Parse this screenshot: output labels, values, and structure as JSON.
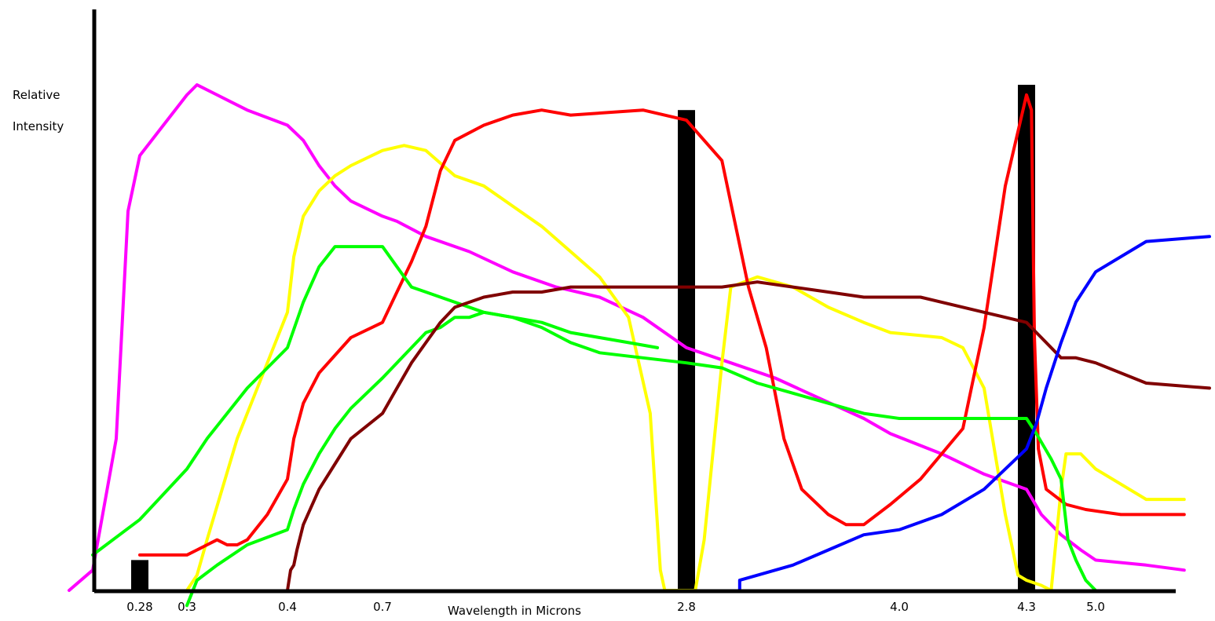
{
  "chart_data": {
    "type": "line",
    "title": "",
    "xlabel": "Wavelength in Microns",
    "ylabel": "Relative Intensity",
    "ylabel_lines": [
      "Relative",
      "Intensity"
    ],
    "ylim": [
      0,
      100
    ],
    "grid": false,
    "legend": "none",
    "x_ticks": [
      {
        "label": "0.28",
        "value": 0.28
      },
      {
        "label": "0.3",
        "value": 0.3
      },
      {
        "label": "0.4",
        "value": 0.4
      },
      {
        "label": "0.7",
        "value": 0.7
      },
      {
        "label": "2.8",
        "value": 2.8
      },
      {
        "label": "4.0",
        "value": 4.0
      },
      {
        "label": "4.3",
        "value": 4.3
      },
      {
        "label": "5.0",
        "value": 5.0
      }
    ],
    "x_mapping": [
      [
        0.28,
        178
      ],
      [
        0.3,
        238
      ],
      [
        0.4,
        366
      ],
      [
        0.7,
        487
      ],
      [
        2.8,
        874
      ],
      [
        4.0,
        1145
      ],
      [
        4.3,
        1307
      ],
      [
        5.0,
        1395
      ],
      [
        5.45,
        1540
      ]
    ],
    "bands": [
      {
        "x": 0.28,
        "height": 6,
        "color": "#000000"
      },
      {
        "x": 2.8,
        "height": 95,
        "color": "#000000"
      },
      {
        "x": 4.3,
        "height": 100,
        "color": "#000000"
      }
    ],
    "series": [
      {
        "color": "#ff00ff",
        "points": [
          [
            0.25,
            0
          ],
          [
            0.26,
            4
          ],
          [
            0.27,
            30
          ],
          [
            0.275,
            75
          ],
          [
            0.28,
            86
          ],
          [
            0.29,
            92
          ],
          [
            0.3,
            98
          ],
          [
            0.31,
            100
          ],
          [
            0.33,
            98
          ],
          [
            0.36,
            95
          ],
          [
            0.4,
            92
          ],
          [
            0.45,
            89
          ],
          [
            0.5,
            84
          ],
          [
            0.55,
            80
          ],
          [
            0.6,
            77
          ],
          [
            0.7,
            74
          ],
          [
            0.8,
            73
          ],
          [
            1.0,
            70
          ],
          [
            1.3,
            67
          ],
          [
            1.6,
            63
          ],
          [
            1.9,
            60
          ],
          [
            2.2,
            58
          ],
          [
            2.5,
            54
          ],
          [
            2.8,
            48
          ],
          [
            3.05,
            45
          ],
          [
            3.3,
            42
          ],
          [
            3.55,
            38
          ],
          [
            3.8,
            34
          ],
          [
            3.95,
            31
          ],
          [
            4.1,
            27
          ],
          [
            4.2,
            23
          ],
          [
            4.3,
            20
          ],
          [
            4.45,
            15
          ],
          [
            4.65,
            11
          ],
          [
            4.85,
            8
          ],
          [
            5.0,
            6
          ],
          [
            5.2,
            5
          ],
          [
            5.35,
            4
          ]
        ]
      },
      {
        "color": "#ffff00",
        "points": [
          [
            0.3,
            0
          ],
          [
            0.31,
            3
          ],
          [
            0.32,
            10
          ],
          [
            0.35,
            30
          ],
          [
            0.38,
            45
          ],
          [
            0.4,
            55
          ],
          [
            0.42,
            66
          ],
          [
            0.45,
            74
          ],
          [
            0.5,
            79
          ],
          [
            0.55,
            82
          ],
          [
            0.6,
            84
          ],
          [
            0.7,
            87
          ],
          [
            0.85,
            88
          ],
          [
            1.0,
            87
          ],
          [
            1.2,
            82
          ],
          [
            1.4,
            80
          ],
          [
            1.6,
            76
          ],
          [
            1.8,
            72
          ],
          [
            2.0,
            67
          ],
          [
            2.2,
            62
          ],
          [
            2.4,
            54
          ],
          [
            2.55,
            35
          ],
          [
            2.62,
            4
          ],
          [
            2.65,
            0
          ],
          [
            2.72,
            0
          ],
          [
            2.85,
            0
          ],
          [
            2.9,
            10
          ],
          [
            3.0,
            45
          ],
          [
            3.05,
            60
          ],
          [
            3.2,
            62
          ],
          [
            3.4,
            60
          ],
          [
            3.6,
            56
          ],
          [
            3.8,
            53
          ],
          [
            3.95,
            51
          ],
          [
            4.1,
            50
          ],
          [
            4.15,
            48
          ],
          [
            4.2,
            40
          ],
          [
            4.25,
            15
          ],
          [
            4.28,
            3
          ],
          [
            4.3,
            2
          ],
          [
            4.45,
            1
          ],
          [
            4.55,
            0
          ],
          [
            4.65,
            20
          ],
          [
            4.7,
            27
          ],
          [
            4.85,
            27
          ],
          [
            5.0,
            24
          ],
          [
            5.2,
            18
          ],
          [
            5.35,
            18
          ]
        ]
      },
      {
        "color": "#ff0000",
        "points": [
          [
            0.28,
            7
          ],
          [
            0.3,
            7
          ],
          [
            0.31,
            8
          ],
          [
            0.32,
            9
          ],
          [
            0.33,
            10
          ],
          [
            0.34,
            9
          ],
          [
            0.35,
            9
          ],
          [
            0.36,
            10
          ],
          [
            0.38,
            15
          ],
          [
            0.4,
            22
          ],
          [
            0.42,
            30
          ],
          [
            0.45,
            37
          ],
          [
            0.5,
            43
          ],
          [
            0.6,
            50
          ],
          [
            0.7,
            53
          ],
          [
            0.8,
            59
          ],
          [
            0.9,
            65
          ],
          [
            1.0,
            72
          ],
          [
            1.1,
            83
          ],
          [
            1.2,
            89
          ],
          [
            1.4,
            92
          ],
          [
            1.6,
            94
          ],
          [
            1.8,
            95
          ],
          [
            2.0,
            94
          ],
          [
            2.5,
            95
          ],
          [
            2.8,
            93
          ],
          [
            3.0,
            85
          ],
          [
            3.15,
            60
          ],
          [
            3.25,
            48
          ],
          [
            3.35,
            30
          ],
          [
            3.45,
            20
          ],
          [
            3.6,
            15
          ],
          [
            3.7,
            13
          ],
          [
            3.8,
            13
          ],
          [
            3.95,
            17
          ],
          [
            4.05,
            22
          ],
          [
            4.15,
            32
          ],
          [
            4.2,
            52
          ],
          [
            4.25,
            80
          ],
          [
            4.3,
            98
          ],
          [
            4.35,
            95
          ],
          [
            4.38,
            50
          ],
          [
            4.42,
            28
          ],
          [
            4.5,
            20
          ],
          [
            4.7,
            17
          ],
          [
            4.9,
            16
          ],
          [
            5.1,
            15
          ],
          [
            5.35,
            15
          ]
        ]
      },
      {
        "color": "#00ff00",
        "points": [
          [
            0.26,
            7
          ],
          [
            0.28,
            14
          ],
          [
            0.3,
            24
          ],
          [
            0.32,
            30
          ],
          [
            0.36,
            40
          ],
          [
            0.4,
            48
          ],
          [
            0.45,
            57
          ],
          [
            0.5,
            64
          ],
          [
            0.55,
            68
          ],
          [
            0.6,
            68
          ],
          [
            0.7,
            68
          ],
          [
            0.8,
            64
          ],
          [
            0.9,
            60
          ],
          [
            1.0,
            59
          ],
          [
            1.2,
            57
          ],
          [
            1.4,
            55
          ],
          [
            1.6,
            54
          ],
          [
            1.8,
            52
          ],
          [
            2.0,
            49
          ],
          [
            2.2,
            47
          ],
          [
            2.5,
            46
          ],
          [
            2.8,
            45
          ],
          [
            3.0,
            44
          ],
          [
            3.2,
            41
          ],
          [
            3.4,
            39
          ],
          [
            3.6,
            37
          ],
          [
            3.8,
            35
          ],
          [
            4.0,
            34
          ],
          [
            4.2,
            34
          ],
          [
            4.3,
            34
          ],
          [
            4.4,
            31
          ],
          [
            4.55,
            26
          ],
          [
            4.65,
            22
          ],
          [
            4.72,
            10
          ],
          [
            4.8,
            6
          ],
          [
            4.9,
            2
          ],
          [
            5.0,
            0
          ]
        ]
      },
      {
        "color": "#00ff00",
        "points": [
          [
            0.3,
            -3
          ],
          [
            0.31,
            2
          ],
          [
            0.33,
            5
          ],
          [
            0.36,
            9
          ],
          [
            0.4,
            12
          ],
          [
            0.42,
            16
          ],
          [
            0.45,
            21
          ],
          [
            0.5,
            27
          ],
          [
            0.55,
            32
          ],
          [
            0.6,
            36
          ],
          [
            0.7,
            42
          ],
          [
            0.8,
            45
          ],
          [
            0.9,
            48
          ],
          [
            1.0,
            51
          ],
          [
            1.1,
            52
          ],
          [
            1.2,
            54
          ],
          [
            1.3,
            54
          ],
          [
            1.4,
            55
          ],
          [
            1.6,
            54
          ],
          [
            1.8,
            53
          ],
          [
            2.0,
            51
          ],
          [
            2.2,
            50
          ],
          [
            2.4,
            49
          ],
          [
            2.6,
            48
          ]
        ]
      },
      {
        "color": "#800000",
        "points": [
          [
            0.4,
            0
          ],
          [
            0.41,
            4
          ],
          [
            0.42,
            5
          ],
          [
            0.43,
            8
          ],
          [
            0.45,
            13
          ],
          [
            0.5,
            20
          ],
          [
            0.55,
            25
          ],
          [
            0.6,
            30
          ],
          [
            0.7,
            35
          ],
          [
            0.8,
            40
          ],
          [
            0.9,
            45
          ],
          [
            1.0,
            49
          ],
          [
            1.1,
            53
          ],
          [
            1.2,
            56
          ],
          [
            1.4,
            58
          ],
          [
            1.6,
            59
          ],
          [
            1.8,
            59
          ],
          [
            2.0,
            60
          ],
          [
            2.2,
            60
          ],
          [
            2.5,
            60
          ],
          [
            2.8,
            60
          ],
          [
            3.0,
            60
          ],
          [
            3.2,
            61
          ],
          [
            3.4,
            60
          ],
          [
            3.6,
            59
          ],
          [
            3.8,
            58
          ],
          [
            4.0,
            58
          ],
          [
            4.05,
            58
          ],
          [
            4.2,
            55
          ],
          [
            4.3,
            53
          ],
          [
            4.4,
            51
          ],
          [
            4.5,
            49
          ],
          [
            4.65,
            46
          ],
          [
            4.8,
            46
          ],
          [
            5.0,
            45
          ],
          [
            5.2,
            41
          ],
          [
            5.45,
            40
          ]
        ]
      },
      {
        "color": "#0000ff",
        "points": [
          [
            3.1,
            0
          ],
          [
            3.1,
            2
          ],
          [
            3.2,
            3
          ],
          [
            3.4,
            5
          ],
          [
            3.6,
            8
          ],
          [
            3.8,
            11
          ],
          [
            4.0,
            12
          ],
          [
            4.1,
            15
          ],
          [
            4.2,
            20
          ],
          [
            4.3,
            28
          ],
          [
            4.4,
            33
          ],
          [
            4.5,
            40
          ],
          [
            4.65,
            49
          ],
          [
            4.8,
            57
          ],
          [
            5.0,
            63
          ],
          [
            5.2,
            69
          ],
          [
            5.45,
            70
          ]
        ]
      }
    ]
  }
}
